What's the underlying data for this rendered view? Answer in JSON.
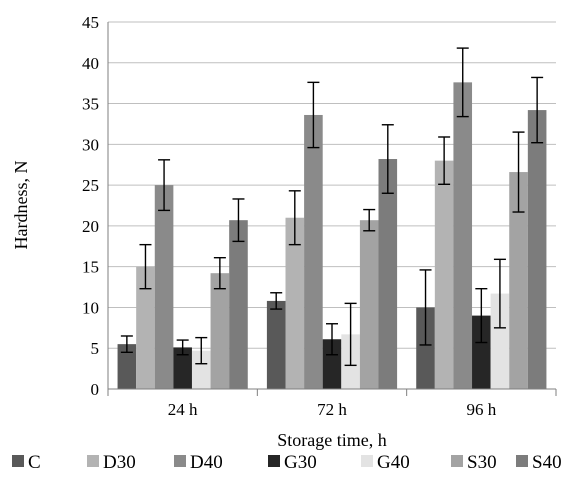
{
  "chart_data": {
    "type": "bar",
    "categories": [
      "24 h",
      "72 h",
      "96 h"
    ],
    "xlabel": "Storage time, h",
    "ylabel": "Hardness, N",
    "ylim": [
      0,
      45
    ],
    "yticks": [
      0,
      5,
      10,
      15,
      20,
      25,
      30,
      35,
      40,
      45
    ],
    "error_bars": true,
    "grid": "horizontal",
    "legend_position": "bottom",
    "series": [
      {
        "name": "C",
        "color": "#595959",
        "values": [
          5.5,
          10.8,
          10.0
        ],
        "errors": [
          1.0,
          1.0,
          4.6
        ]
      },
      {
        "name": "D30",
        "color": "#b3b3b3",
        "values": [
          15.0,
          21.0,
          28.0
        ],
        "errors": [
          2.7,
          3.3,
          2.9
        ]
      },
      {
        "name": "D40",
        "color": "#8a8a8a",
        "values": [
          25.0,
          33.6,
          37.6
        ],
        "errors": [
          3.1,
          4.0,
          4.2
        ]
      },
      {
        "name": "G30",
        "color": "#262626",
        "values": [
          5.1,
          6.1,
          9.0
        ],
        "errors": [
          0.9,
          1.9,
          3.3
        ]
      },
      {
        "name": "G40",
        "color": "#e3e3e3",
        "values": [
          4.7,
          6.7,
          11.7
        ],
        "errors": [
          1.6,
          3.8,
          4.2
        ]
      },
      {
        "name": "S30",
        "color": "#a3a3a3",
        "values": [
          14.2,
          20.7,
          26.6
        ],
        "errors": [
          1.9,
          1.3,
          4.9
        ]
      },
      {
        "name": "S40",
        "color": "#7c7c7c",
        "values": [
          20.7,
          28.2,
          34.2
        ],
        "errors": [
          2.6,
          4.2,
          4.0
        ]
      }
    ]
  }
}
